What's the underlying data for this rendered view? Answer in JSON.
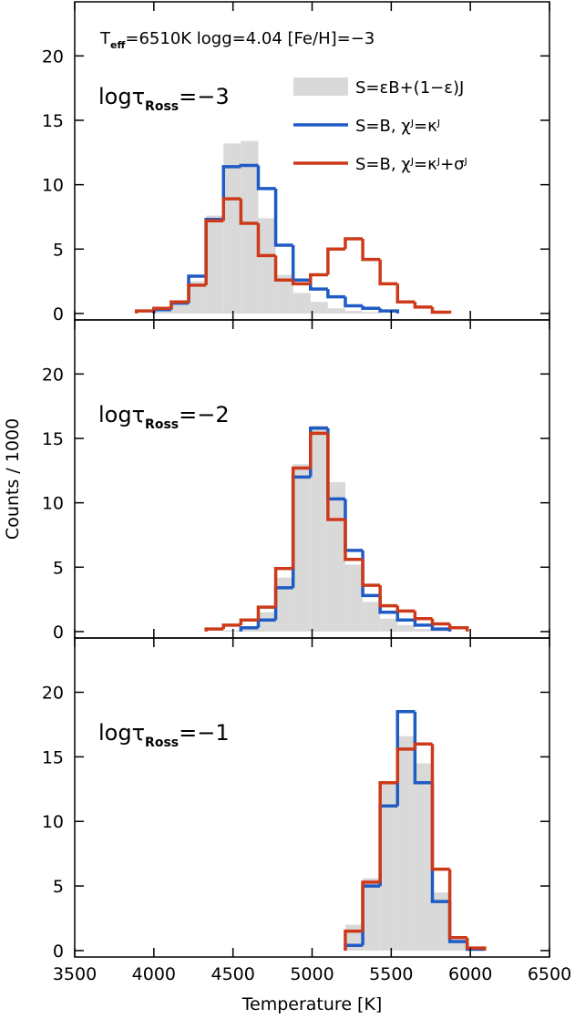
{
  "header": [
    "T",
    "eff",
    "=6510K  logg=4.04  [Fe/H]=−3"
  ],
  "chart_data": [
    {
      "type": "histogram",
      "annotation": [
        "logτ",
        "Ross",
        "=−3"
      ],
      "bins": [
        3890,
        4000,
        4110,
        4220,
        4330,
        4440,
        4550,
        4660,
        4770,
        4880,
        4990,
        5100,
        5210,
        5320,
        5430,
        5540,
        5650,
        5760,
        5870,
        5980,
        6090
      ],
      "xlim": [
        3500,
        6500
      ],
      "xticks": [
        3500,
        4000,
        4500,
        5000,
        5500,
        6000,
        6500
      ],
      "show_xticklabels": false,
      "ylim": [
        -0.5,
        24.2
      ],
      "yticks": [
        0,
        5,
        10,
        15,
        20
      ],
      "series": [
        {
          "name": "S=εB+(1−ε)J",
          "style": "fill",
          "color": "#d9d9d9",
          "values": [
            null,
            0.3,
            0.7,
            2.5,
            7.6,
            13.2,
            13.4,
            7.4,
            3.0,
            1.6,
            0.9,
            0.4,
            0.2,
            0.1,
            null,
            null,
            null,
            null,
            null,
            null
          ]
        },
        {
          "name": "S=B,  χᴶ=κᴶ",
          "style": "step",
          "color": "#1f5bc4",
          "values": [
            null,
            0.3,
            0.8,
            2.9,
            7.3,
            11.4,
            11.5,
            9.7,
            5.3,
            2.6,
            1.9,
            1.3,
            0.6,
            0.4,
            0.2,
            null,
            null,
            null,
            null,
            null
          ]
        },
        {
          "name": "S=B,  χᴶ=κᴶ+σᴶ",
          "style": "step",
          "color": "#cc3a1a",
          "values": [
            0.2,
            0.4,
            0.9,
            2.2,
            7.2,
            8.9,
            7.0,
            4.5,
            2.6,
            2.3,
            3.0,
            5.0,
            5.8,
            4.2,
            2.3,
            0.9,
            0.5,
            0.1,
            null,
            null
          ]
        }
      ]
    },
    {
      "type": "histogram",
      "annotation": [
        "logτ",
        "Ross",
        "=−2"
      ],
      "ylabel": "Counts / 1000",
      "bins": [
        3890,
        4000,
        4110,
        4220,
        4330,
        4440,
        4550,
        4660,
        4770,
        4880,
        4990,
        5100,
        5210,
        5320,
        5430,
        5540,
        5650,
        5760,
        5870,
        5980,
        6090
      ],
      "xlim": [
        3500,
        6500
      ],
      "xticks": [
        3500,
        4000,
        4500,
        5000,
        5500,
        6000,
        6500
      ],
      "show_xticklabels": false,
      "ylim": [
        -0.5,
        24.2
      ],
      "yticks": [
        0,
        5,
        10,
        15,
        20
      ],
      "series": [
        {
          "style": "fill",
          "color": "#d9d9d9",
          "values": [
            null,
            null,
            null,
            null,
            null,
            0.1,
            0.4,
            1.5,
            4.2,
            13.0,
            16.0,
            11.6,
            5.2,
            2.3,
            1.0,
            0.5,
            0.2,
            0.1,
            null,
            null
          ]
        },
        {
          "style": "step",
          "color": "#1f5bc4",
          "values": [
            null,
            null,
            null,
            null,
            null,
            null,
            0.3,
            0.9,
            3.4,
            12.0,
            15.8,
            10.3,
            6.3,
            2.8,
            1.5,
            0.9,
            0.5,
            0.2,
            null,
            null
          ]
        },
        {
          "style": "step",
          "color": "#cc3a1a",
          "values": [
            null,
            null,
            null,
            null,
            0.2,
            0.5,
            0.9,
            1.9,
            4.9,
            12.7,
            15.4,
            8.7,
            5.6,
            3.6,
            2.0,
            1.6,
            1.0,
            0.6,
            0.3,
            null
          ]
        }
      ]
    },
    {
      "type": "histogram",
      "annotation": [
        "logτ",
        "Ross",
        "=−1"
      ],
      "xlabel": "Temperature [K]",
      "bins": [
        3890,
        4000,
        4110,
        4220,
        4330,
        4440,
        4550,
        4660,
        4770,
        4880,
        4990,
        5100,
        5210,
        5320,
        5430,
        5540,
        5650,
        5760,
        5870,
        5980,
        6090
      ],
      "xlim": [
        3500,
        6500
      ],
      "xticks": [
        3500,
        4000,
        4500,
        5000,
        5500,
        6000,
        6500
      ],
      "show_xticklabels": true,
      "ylim": [
        -0.5,
        24.2
      ],
      "yticks": [
        0,
        5,
        10,
        15,
        20
      ],
      "series": [
        {
          "style": "fill",
          "color": "#d9d9d9",
          "values": [
            null,
            null,
            null,
            null,
            null,
            null,
            null,
            null,
            null,
            null,
            null,
            null,
            2.0,
            5.6,
            13.0,
            16.6,
            14.5,
            4.5,
            0.6,
            null
          ]
        },
        {
          "style": "step",
          "color": "#1f5bc4",
          "values": [
            null,
            null,
            null,
            null,
            null,
            null,
            null,
            null,
            null,
            null,
            null,
            null,
            0.4,
            5.0,
            11.2,
            18.5,
            13.0,
            3.8,
            0.7,
            0.1
          ]
        },
        {
          "style": "step",
          "color": "#cc3a1a",
          "values": [
            null,
            null,
            null,
            null,
            null,
            null,
            null,
            null,
            null,
            null,
            null,
            null,
            1.5,
            5.3,
            13.0,
            15.6,
            16.0,
            6.3,
            1.0,
            0.2
          ]
        }
      ]
    }
  ]
}
